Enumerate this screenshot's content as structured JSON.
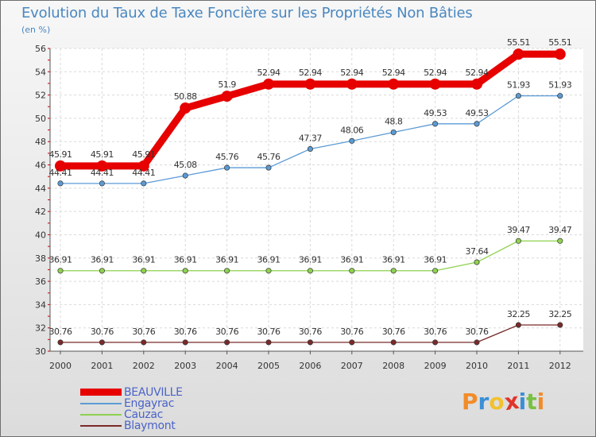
{
  "header": {
    "title": "Evolution du Taux de Taxe Foncière sur les Propriétés Non Bâties",
    "unit": "(en %)"
  },
  "chart_data": {
    "type": "line",
    "title": "Evolution du Taux de Taxe Foncière sur les Propriétés Non Bâties",
    "ylabel": "(en %)",
    "xlabel": "",
    "ylim": [
      30,
      56
    ],
    "yticks": [
      30,
      32,
      34,
      36,
      38,
      40,
      42,
      44,
      46,
      48,
      50,
      52,
      54,
      56
    ],
    "grid": true,
    "categories": [
      "2000",
      "2001",
      "2002",
      "2003",
      "2004",
      "2005",
      "2006",
      "2007",
      "2008",
      "2009",
      "2010",
      "2011",
      "2012"
    ],
    "series": [
      {
        "name": "BEAUVILLE",
        "color": "#e60000",
        "labels": [
          "45.91",
          "45.91",
          "45.91",
          "50.88",
          "51.9",
          "52.94",
          "52.94",
          "52.94",
          "52.94",
          "52.94",
          "52.94",
          "55.51",
          "55.51"
        ],
        "values": [
          45.91,
          45.91,
          45.91,
          50.88,
          51.9,
          52.94,
          52.94,
          52.94,
          52.94,
          52.94,
          52.94,
          55.51,
          55.51
        ]
      },
      {
        "name": "Engayrac",
        "color": "#5b9bd5",
        "labels": [
          "44.41",
          "44.41",
          "44.41",
          "45.08",
          "45.76",
          "45.76",
          "47.37",
          "48.06",
          "48.8",
          "49.53",
          "49.53",
          "51.93",
          "51.93"
        ],
        "values": [
          44.41,
          44.41,
          44.41,
          45.08,
          45.76,
          45.76,
          47.37,
          48.06,
          48.8,
          49.53,
          49.53,
          51.93,
          51.93
        ]
      },
      {
        "name": "Cauzac",
        "color": "#8fd14f",
        "labels": [
          "36.91",
          "36.91",
          "36.91",
          "36.91",
          "36.91",
          "36.91",
          "36.91",
          "36.91",
          "36.91",
          "36.91",
          "37.64",
          "39.47",
          "39.47"
        ],
        "values": [
          36.91,
          36.91,
          36.91,
          36.91,
          36.91,
          36.91,
          36.91,
          36.91,
          36.91,
          36.91,
          37.64,
          39.47,
          39.47
        ]
      },
      {
        "name": "Blaymont",
        "color": "#7a2a2a",
        "labels": [
          "30.76",
          "30.76",
          "30.76",
          "30.76",
          "30.76",
          "30.76",
          "30.76",
          "30.76",
          "30.76",
          "30.76",
          "30.76",
          "32.25",
          "32.25"
        ],
        "values": [
          30.76,
          30.76,
          30.76,
          30.76,
          30.76,
          30.76,
          30.76,
          30.76,
          30.76,
          30.76,
          30.76,
          32.25,
          32.25
        ]
      }
    ],
    "legend_position": "bottom-left"
  },
  "legend": {
    "items": [
      {
        "label": "BEAUVILLE",
        "color": "#e60000"
      },
      {
        "label": "Engayrac",
        "color": "#5b9bd5"
      },
      {
        "label": "Cauzac",
        "color": "#8fd14f"
      },
      {
        "label": "Blaymont",
        "color": "#7a2a2a"
      }
    ]
  },
  "logo": {
    "text": "Proxiti",
    "letters": [
      {
        "ch": "P",
        "color": "#f28c28"
      },
      {
        "ch": "r",
        "color": "#3a8fd6"
      },
      {
        "ch": "o",
        "color": "#f2c12e"
      },
      {
        "ch": "x",
        "color": "#e0342b"
      },
      {
        "ch": "i",
        "color": "#3a8fd6"
      },
      {
        "ch": "t",
        "color": "#79c043"
      },
      {
        "ch": "i",
        "color": "#f28c28"
      }
    ]
  }
}
